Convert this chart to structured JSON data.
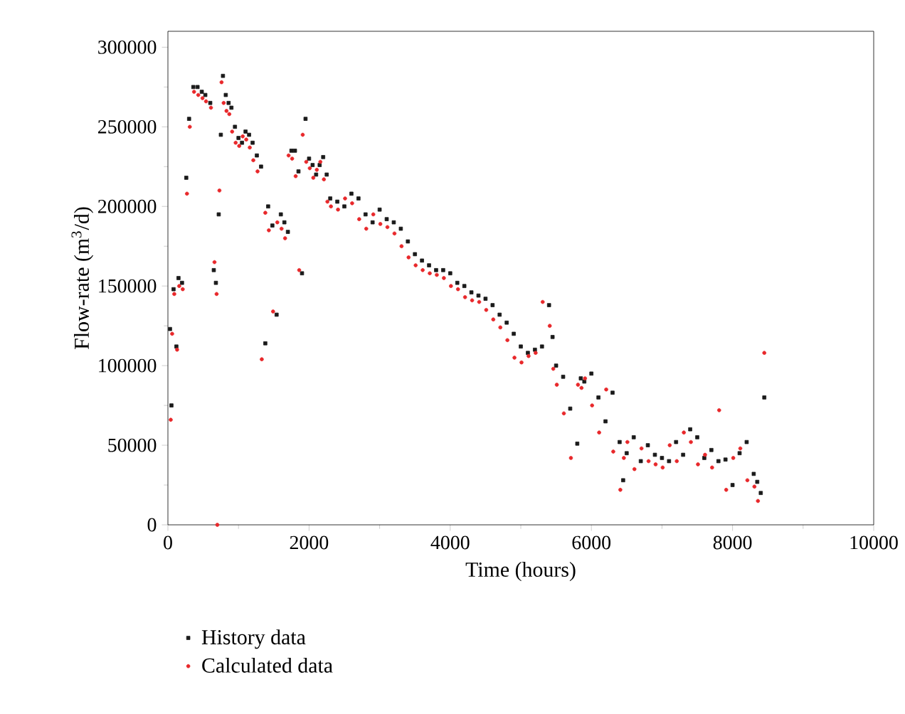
{
  "chart_data": {
    "type": "scatter",
    "xlabel": "Time (hours)",
    "ylabel": "Flow-rate (m$^{3}$/d)",
    "xlim": [
      0,
      10000
    ],
    "ylim": [
      0,
      310000
    ],
    "xticks": [
      0,
      2000,
      4000,
      6000,
      8000,
      10000
    ],
    "yticks": [
      0,
      50000,
      100000,
      150000,
      200000,
      250000,
      300000
    ],
    "legend": "bottom",
    "grid": false,
    "series": [
      {
        "name": "History data",
        "color": "#1a1a1a",
        "marker": "square",
        "x": [
          30,
          50,
          80,
          120,
          150,
          200,
          260,
          300,
          360,
          420,
          480,
          530,
          600,
          650,
          680,
          720,
          750,
          780,
          820,
          860,
          900,
          950,
          1000,
          1050,
          1100,
          1150,
          1200,
          1260,
          1320,
          1380,
          1420,
          1480,
          1540,
          1600,
          1650,
          1700,
          1750,
          1800,
          1850,
          1900,
          1950,
          2000,
          2050,
          2100,
          2150,
          2200,
          2250,
          2300,
          2400,
          2500,
          2600,
          2700,
          2800,
          2900,
          3000,
          3100,
          3200,
          3300,
          3400,
          3500,
          3600,
          3700,
          3800,
          3900,
          4000,
          4100,
          4200,
          4300,
          4400,
          4500,
          4600,
          4700,
          4800,
          4900,
          5000,
          5100,
          5200,
          5300,
          5400,
          5450,
          5500,
          5600,
          5700,
          5800,
          5850,
          5900,
          6000,
          6100,
          6200,
          6300,
          6400,
          6450,
          6500,
          6600,
          6700,
          6800,
          6900,
          7000,
          7100,
          7200,
          7300,
          7400,
          7500,
          7600,
          7700,
          7800,
          7900,
          8000,
          8100,
          8200,
          8300,
          8350,
          8400,
          8450
        ],
        "values": [
          123000,
          75000,
          148000,
          112000,
          155000,
          152000,
          218000,
          255000,
          275000,
          275000,
          272000,
          270000,
          265000,
          160000,
          152000,
          195000,
          245000,
          282000,
          270000,
          265000,
          262000,
          250000,
          243000,
          240000,
          247000,
          245000,
          240000,
          232000,
          225000,
          114000,
          200000,
          188000,
          132000,
          195000,
          190000,
          184000,
          235000,
          235000,
          222000,
          158000,
          255000,
          230000,
          226000,
          220000,
          226000,
          231000,
          220000,
          205000,
          203000,
          200000,
          208000,
          205000,
          195000,
          190000,
          198000,
          192000,
          190000,
          186000,
          178000,
          170000,
          166000,
          163000,
          160000,
          160000,
          158000,
          152000,
          150000,
          146000,
          144000,
          142000,
          138000,
          132000,
          127000,
          120000,
          112000,
          108000,
          110000,
          112000,
          138000,
          118000,
          100000,
          93000,
          73000,
          51000,
          92000,
          90000,
          95000,
          80000,
          65000,
          83000,
          52000,
          28000,
          45000,
          55000,
          40000,
          50000,
          44000,
          42000,
          40000,
          52000,
          44000,
          60000,
          55000,
          42000,
          47000,
          40000,
          41000,
          25000,
          45000,
          52000,
          32000,
          27000,
          20000,
          80000
        ]
      },
      {
        "name": "Calculated data",
        "color": "#e8282b",
        "marker": "circle",
        "x": [
          40,
          60,
          90,
          130,
          160,
          210,
          270,
          310,
          370,
          430,
          490,
          540,
          610,
          660,
          690,
          700,
          730,
          760,
          790,
          830,
          870,
          910,
          960,
          1010,
          1060,
          1110,
          1160,
          1210,
          1270,
          1330,
          1380,
          1430,
          1490,
          1550,
          1610,
          1660,
          1710,
          1760,
          1810,
          1860,
          1910,
          1960,
          2010,
          2060,
          2110,
          2160,
          2210,
          2260,
          2310,
          2410,
          2510,
          2610,
          2710,
          2810,
          2910,
          3010,
          3110,
          3210,
          3310,
          3410,
          3510,
          3610,
          3710,
          3810,
          3910,
          4010,
          4110,
          4210,
          4310,
          4410,
          4510,
          4610,
          4710,
          4810,
          4910,
          5010,
          5110,
          5210,
          5310,
          5410,
          5460,
          5510,
          5610,
          5710,
          5810,
          5860,
          5910,
          6010,
          6110,
          6210,
          6310,
          6410,
          6460,
          6510,
          6610,
          6710,
          6810,
          6910,
          7010,
          7110,
          7210,
          7310,
          7410,
          7510,
          7610,
          7710,
          7810,
          7910,
          8010,
          8110,
          8210,
          8310,
          8360,
          8450
        ],
        "values": [
          66000,
          120000,
          145000,
          110000,
          150000,
          148000,
          208000,
          250000,
          272000,
          270000,
          268000,
          266000,
          262000,
          165000,
          145000,
          0,
          210000,
          278000,
          265000,
          260000,
          258000,
          247000,
          240000,
          238000,
          244000,
          242000,
          237000,
          229000,
          222000,
          104000,
          196000,
          185000,
          134000,
          190000,
          186000,
          180000,
          232000,
          230000,
          219000,
          160000,
          245000,
          228000,
          224000,
          218000,
          223000,
          228000,
          217000,
          203000,
          200000,
          198000,
          205000,
          202000,
          192000,
          186000,
          195000,
          189000,
          187000,
          183000,
          175000,
          168000,
          163000,
          160000,
          158000,
          157000,
          155000,
          150000,
          148000,
          143000,
          141000,
          140000,
          135000,
          129000,
          124000,
          116000,
          105000,
          102000,
          106000,
          108000,
          140000,
          125000,
          98000,
          88000,
          70000,
          42000,
          88000,
          86000,
          92000,
          75000,
          58000,
          85000,
          46000,
          22000,
          42000,
          52000,
          35000,
          48000,
          40000,
          38000,
          36000,
          50000,
          40000,
          58000,
          52000,
          38000,
          44000,
          36000,
          72000,
          22000,
          42000,
          48000,
          28000,
          24000,
          15000,
          108000
        ]
      }
    ]
  }
}
